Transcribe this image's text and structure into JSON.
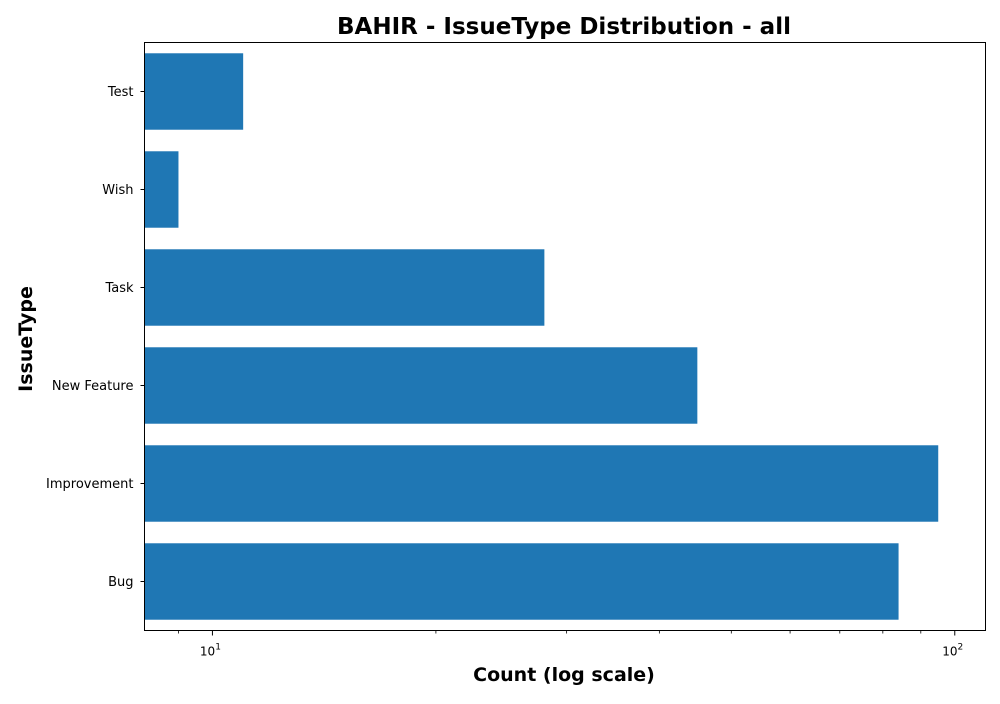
{
  "chart_data": {
    "type": "bar",
    "orientation": "horizontal",
    "title": "BAHIR - IssueType Distribution - all",
    "xlabel": "Count (log scale)",
    "ylabel": "IssueType",
    "x_scale": "log",
    "xlim": [
      8.1,
      110
    ],
    "x_major_ticks": [
      {
        "value": 10,
        "base": "10",
        "exponent": "1"
      },
      {
        "value": 100,
        "base": "10",
        "exponent": "2"
      }
    ],
    "x_minor_ticks": [
      9,
      20,
      30,
      40,
      50,
      60,
      70,
      80,
      90
    ],
    "categories": [
      "Bug",
      "Improvement",
      "New Feature",
      "Task",
      "Wish",
      "Test"
    ],
    "values": [
      84,
      95,
      45,
      28,
      9,
      11
    ],
    "grid": false,
    "legend": "none",
    "colors": {
      "bar": "#1f77b4",
      "axes": "#000000",
      "background": "#ffffff"
    }
  }
}
